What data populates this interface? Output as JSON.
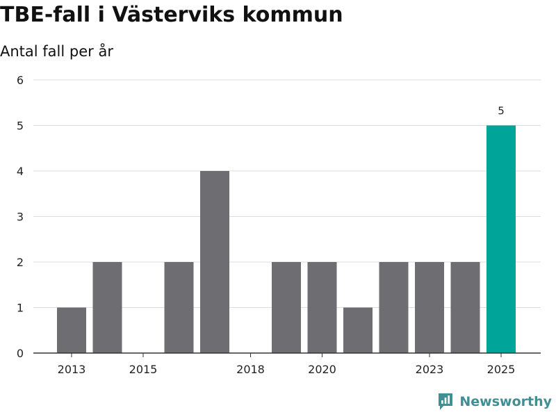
{
  "title": "TBE-fall i Västerviks kommun",
  "subtitle": "Antal fall per år",
  "brand": "Newsworthy",
  "colors": {
    "bar": "#6d6d72",
    "highlight": "#00a499",
    "grid": "#dddddd",
    "axis": "#333333",
    "text": "#222222",
    "brand": "#3f8f94"
  },
  "chart_data": {
    "type": "bar",
    "title": "TBE-fall i Västerviks kommun",
    "subtitle": "Antal fall per år",
    "xlabel": "",
    "ylabel": "",
    "categories": [
      "2013",
      "2014",
      "2015",
      "2016",
      "2017",
      "2018",
      "2019",
      "2020",
      "2021",
      "2022",
      "2023",
      "2024",
      "2025"
    ],
    "values": [
      1,
      2,
      0,
      2,
      4,
      0,
      2,
      2,
      1,
      2,
      2,
      2,
      5
    ],
    "x_tick_labels": [
      "2013",
      "2015",
      "2018",
      "2020",
      "2023",
      "2025"
    ],
    "y_ticks": [
      0,
      1,
      2,
      3,
      4,
      5,
      6
    ],
    "ylim": [
      0,
      6
    ],
    "highlight_category": "2025",
    "data_labels": [
      {
        "category": "2025",
        "text": "5"
      }
    ],
    "grid": true,
    "legend": "none"
  }
}
